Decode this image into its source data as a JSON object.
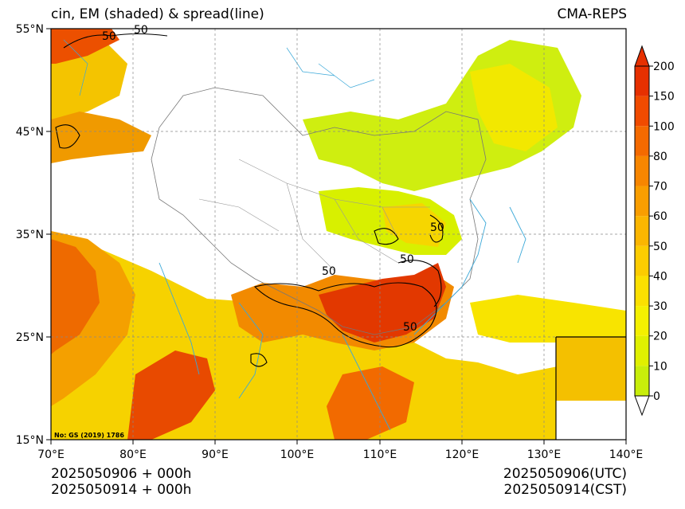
{
  "header": {
    "left_title": "cin, EM (shaded) & spread(line)",
    "right_title": "CMA-REPS"
  },
  "axes": {
    "y_ticks": [
      "55°N",
      "45°N",
      "35°N",
      "25°N",
      "15°N"
    ],
    "x_ticks": [
      "70°E",
      "80°E",
      "90°E",
      "100°E",
      "110°E",
      "120°E",
      "130°E",
      "140°E"
    ]
  },
  "colorbar": {
    "levels": [
      "0",
      "10",
      "20",
      "30",
      "40",
      "50",
      "60",
      "70",
      "80",
      "100",
      "150",
      "200"
    ],
    "colors": [
      "#c8ee0a",
      "#e0f000",
      "#f4f000",
      "#fbe000",
      "#fccc00",
      "#fbb600",
      "#f99e00",
      "#f78600",
      "#f46a00",
      "#f04b00",
      "#e63000"
    ]
  },
  "note": "No: GS (2019) 1786",
  "footer": {
    "left_line1": "2025050906  +  000h",
    "left_line2": "2025050914  +  000h",
    "right_line1": "2025050906(UTC)",
    "right_line2": "2025050914(CST)"
  },
  "contour_labels": [
    "50",
    "50",
    "50",
    "50",
    "50",
    "50"
  ]
}
